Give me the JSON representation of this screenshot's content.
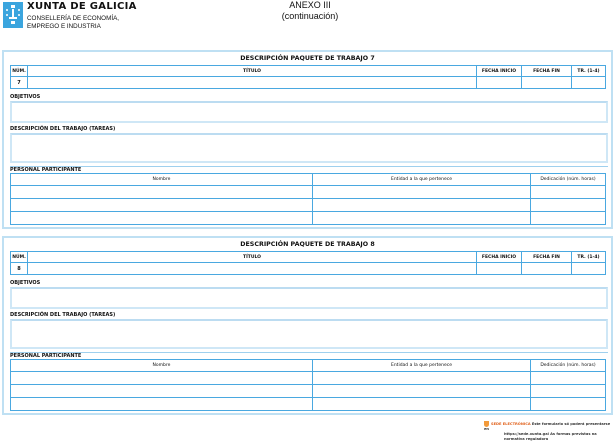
{
  "header": {
    "brand": "XUNTA DE GALICIA",
    "department_line1": "CONSELLERÍA DE ECONOMÍA,",
    "department_line2": "EMPREGO E INDUSTRIA",
    "annex": "ANEXO III",
    "annex_sub": "(continuación)"
  },
  "labels": {
    "num": "NÚM.",
    "titulo": "TÍTULO",
    "fecha_inicio": "FECHA INICIO",
    "fecha_fin": "FECHA FIN",
    "tr": "TR. (1-4)",
    "objetivos": "OBJETIVOS",
    "descripcion": "DESCRIPCIÓN DEL TRABAJO (TAREAS)",
    "personal": "PERSONAL PARTICIPANTE",
    "nombre": "Nombre",
    "entidad": "Entidad a la que pertenece",
    "dedicacion": "Dedicación (núm. horas)"
  },
  "packages": [
    {
      "title": "DESCRIPCIÓN PAQUETE DE TRABAJO 7",
      "num": "7",
      "titulo": "",
      "fecha_inicio": "",
      "fecha_fin": "",
      "tr": "",
      "objetivos": "",
      "descripcion": ""
    },
    {
      "title": "DESCRIPCIÓN PAQUETE DE TRABAJO 8",
      "num": "8",
      "titulo": "",
      "fecha_inicio": "",
      "fecha_fin": "",
      "tr": "",
      "objetivos": "",
      "descripcion": ""
    }
  ],
  "footer": {
    "sede": "SEDE ELECTRÓNICA",
    "line1": "Este formulario só poderá presentarse en",
    "line2": "https://sede.xunta.gal  As formas previstas na normativa reguladora"
  },
  "colors": {
    "border": "#4aa8e0",
    "block_border": "#bfe0f3",
    "logo": "#3ba5de"
  }
}
